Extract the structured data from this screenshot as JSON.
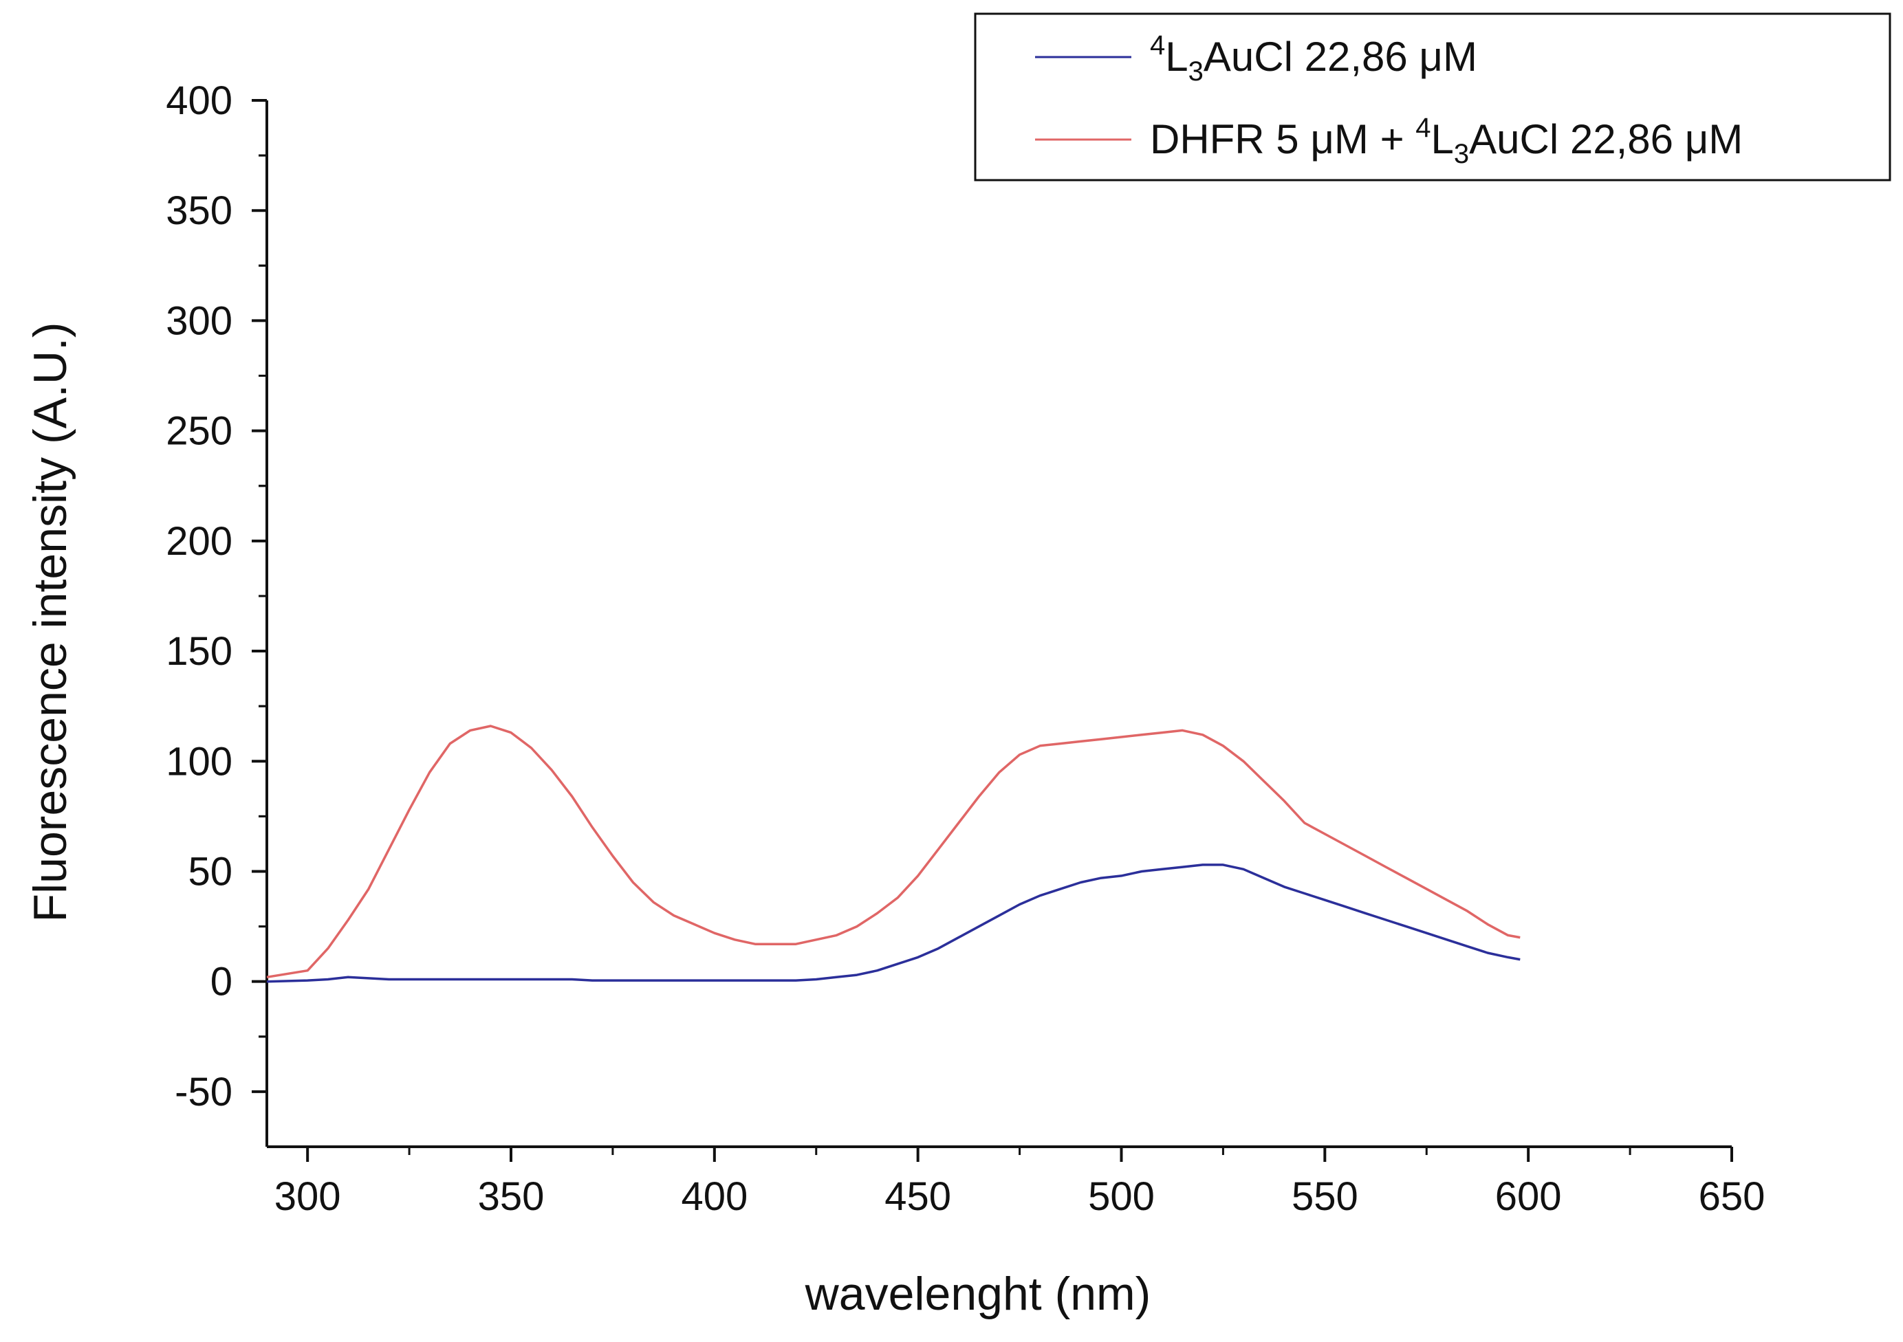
{
  "chart_data": {
    "type": "line",
    "title": "",
    "xlabel": "wavelenght (nm)",
    "ylabel": "Fluorescence intensity (A.U.)",
    "xlim": [
      290,
      650
    ],
    "ylim": [
      -75,
      400
    ],
    "xticks": [
      300,
      350,
      400,
      450,
      500,
      550,
      600,
      650
    ],
    "yticks": [
      -50,
      0,
      50,
      100,
      150,
      200,
      250,
      300,
      350,
      400
    ],
    "x": [
      290,
      300,
      305,
      310,
      315,
      320,
      325,
      330,
      335,
      340,
      345,
      350,
      355,
      360,
      365,
      370,
      375,
      380,
      385,
      390,
      395,
      400,
      405,
      410,
      415,
      420,
      425,
      430,
      435,
      440,
      445,
      450,
      455,
      460,
      465,
      470,
      475,
      480,
      485,
      490,
      495,
      500,
      505,
      510,
      515,
      520,
      525,
      530,
      535,
      540,
      545,
      550,
      555,
      560,
      565,
      570,
      575,
      580,
      585,
      590,
      595,
      598
    ],
    "series": [
      {
        "name": "⁴L₃AuCl 22,86 μM",
        "color": "#2b2f9a",
        "values": [
          0,
          0.5,
          1,
          2,
          1.5,
          1,
          1,
          1,
          1,
          1,
          1,
          1,
          1,
          1,
          1,
          0.5,
          0.5,
          0.5,
          0.5,
          0.5,
          0.5,
          0.5,
          0.5,
          0.5,
          0.5,
          0.5,
          1,
          2,
          3,
          5,
          8,
          11,
          15,
          20,
          25,
          30,
          35,
          39,
          42,
          45,
          47,
          48,
          50,
          51,
          52,
          53,
          53,
          51,
          47,
          43,
          40,
          37,
          34,
          31,
          28,
          25,
          22,
          19,
          16,
          13,
          11,
          10
        ]
      },
      {
        "name": "DHFR 5 μM + ⁴L₃AuCl 22,86 μM",
        "color": "#e06666",
        "values": [
          2,
          5,
          15,
          28,
          42,
          60,
          78,
          95,
          108,
          114,
          116,
          113,
          106,
          96,
          84,
          70,
          57,
          45,
          36,
          30,
          26,
          22,
          19,
          17,
          17,
          17,
          19,
          21,
          25,
          31,
          38,
          48,
          60,
          72,
          84,
          95,
          103,
          107,
          108,
          109,
          110,
          111,
          112,
          113,
          114,
          112,
          107,
          100,
          91,
          82,
          72,
          67,
          62,
          57,
          52,
          47,
          42,
          37,
          32,
          26,
          21,
          20
        ]
      }
    ],
    "legend": {
      "position": "top-right",
      "entries": [
        {
          "prefix": "",
          "sup": "4",
          "main": "L",
          "sub": "3",
          "rest": "AuCl 22,86 μM"
        },
        {
          "prefix": "DHFR 5 μM + ",
          "sup": "4",
          "main": "L",
          "sub": "3",
          "rest": "AuCl 22,86 μM"
        }
      ]
    }
  }
}
